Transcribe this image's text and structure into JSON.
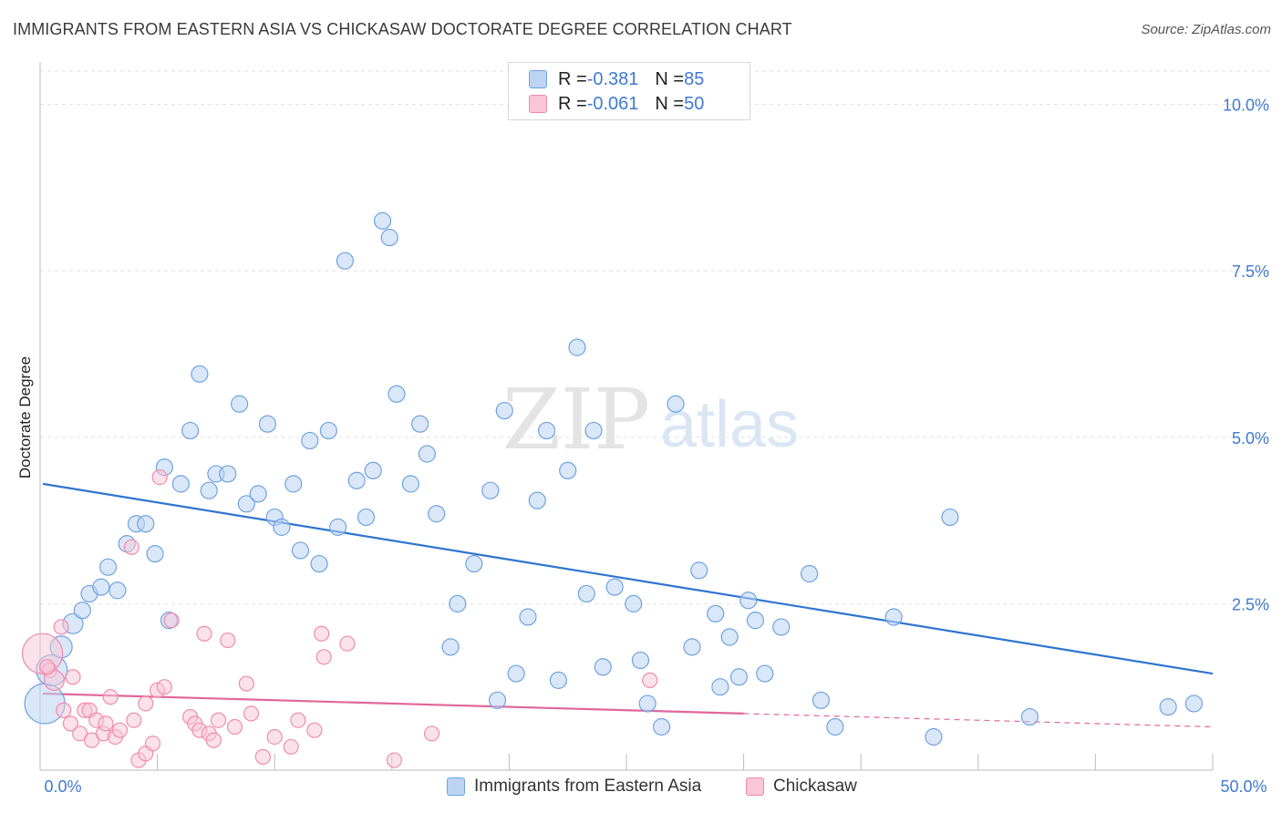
{
  "title": "IMMIGRANTS FROM EASTERN ASIA VS CHICKASAW DOCTORATE DEGREE CORRELATION CHART",
  "source": "Source: ZipAtlas.com",
  "watermark": {
    "zip": "ZIP",
    "atlas": "atlas"
  },
  "legend": {
    "rows": [
      {
        "r_label": "R = ",
        "r_value": "-0.381",
        "n_label": "N = ",
        "n_value": "85"
      },
      {
        "r_label": "R = ",
        "r_value": "-0.061",
        "n_label": "N = ",
        "n_value": "50"
      }
    ]
  },
  "chart_data": {
    "type": "scatter",
    "title": "IMMIGRANTS FROM EASTERN ASIA VS CHICKASAW DOCTORATE DEGREE CORRELATION CHART",
    "xlabel": "",
    "ylabel": "Doctorate Degree",
    "xlim": [
      0,
      50
    ],
    "ylim": [
      0,
      10.5
    ],
    "x_tick_labels": [
      "0.0%",
      "50.0%"
    ],
    "y_ticks": [
      2.5,
      5.0,
      7.5,
      10.0
    ],
    "y_tick_labels": [
      "2.5%",
      "5.0%",
      "7.5%",
      "10.0%"
    ],
    "grid": true,
    "colors": {
      "series1": "#6fa3e0",
      "series1_fill": "#bcd4f2",
      "series1_line": "#2f74d0",
      "series2": "#f08cae",
      "series2_fill": "#f8c6d6",
      "series2_line": "#e0679a",
      "tick_label": "#3f7ad1"
    },
    "series": [
      {
        "name": "Immigrants from Eastern Asia",
        "r": -0.381,
        "n": 85,
        "trend": {
          "x0": 0,
          "y0": 4.3,
          "x1": 50,
          "y1": 1.45
        },
        "points": [
          [
            0.2,
            1.0
          ],
          [
            0.5,
            1.5
          ],
          [
            0.9,
            1.85
          ],
          [
            1.4,
            2.2
          ],
          [
            1.8,
            2.4
          ],
          [
            2.1,
            2.65
          ],
          [
            2.6,
            2.75
          ],
          [
            2.9,
            3.05
          ],
          [
            3.3,
            2.7
          ],
          [
            3.7,
            3.4
          ],
          [
            4.1,
            3.7
          ],
          [
            4.5,
            3.7
          ],
          [
            4.9,
            3.25
          ],
          [
            5.3,
            4.55
          ],
          [
            5.5,
            2.25
          ],
          [
            6.0,
            4.3
          ],
          [
            6.4,
            5.1
          ],
          [
            6.8,
            5.95
          ],
          [
            7.2,
            4.2
          ],
          [
            7.5,
            4.45
          ],
          [
            8.0,
            4.45
          ],
          [
            8.5,
            5.5
          ],
          [
            8.8,
            4.0
          ],
          [
            9.3,
            4.15
          ],
          [
            9.7,
            5.2
          ],
          [
            10.0,
            3.8
          ],
          [
            10.3,
            3.65
          ],
          [
            10.8,
            4.3
          ],
          [
            11.1,
            3.3
          ],
          [
            11.5,
            4.95
          ],
          [
            11.9,
            3.1
          ],
          [
            12.3,
            5.1
          ],
          [
            12.7,
            3.65
          ],
          [
            13.0,
            7.65
          ],
          [
            13.5,
            4.35
          ],
          [
            13.9,
            3.8
          ],
          [
            14.2,
            4.5
          ],
          [
            14.6,
            8.25
          ],
          [
            14.9,
            8.0
          ],
          [
            15.2,
            5.65
          ],
          [
            15.8,
            4.3
          ],
          [
            16.2,
            5.2
          ],
          [
            16.5,
            4.75
          ],
          [
            16.9,
            3.85
          ],
          [
            17.5,
            1.85
          ],
          [
            17.8,
            2.5
          ],
          [
            18.5,
            3.1
          ],
          [
            19.2,
            4.2
          ],
          [
            19.5,
            1.05
          ],
          [
            19.8,
            5.4
          ],
          [
            20.3,
            1.45
          ],
          [
            20.8,
            2.3
          ],
          [
            21.2,
            4.05
          ],
          [
            21.6,
            5.1
          ],
          [
            22.1,
            1.35
          ],
          [
            22.5,
            4.5
          ],
          [
            22.9,
            6.35
          ],
          [
            23.3,
            2.65
          ],
          [
            23.6,
            5.1
          ],
          [
            24.0,
            1.55
          ],
          [
            24.5,
            2.75
          ],
          [
            25.3,
            2.5
          ],
          [
            25.6,
            1.65
          ],
          [
            25.9,
            1.0
          ],
          [
            26.5,
            0.65
          ],
          [
            27.1,
            5.5
          ],
          [
            27.8,
            1.85
          ],
          [
            28.1,
            3.0
          ],
          [
            28.8,
            2.35
          ],
          [
            29.0,
            1.25
          ],
          [
            29.4,
            2.0
          ],
          [
            29.8,
            1.4
          ],
          [
            30.2,
            2.55
          ],
          [
            30.5,
            2.25
          ],
          [
            30.9,
            1.45
          ],
          [
            31.6,
            2.15
          ],
          [
            32.8,
            2.95
          ],
          [
            33.3,
            1.05
          ],
          [
            33.9,
            0.65
          ],
          [
            36.4,
            2.3
          ],
          [
            38.1,
            0.5
          ],
          [
            38.8,
            3.8
          ],
          [
            42.2,
            0.8
          ],
          [
            48.1,
            0.95
          ],
          [
            49.2,
            1.0
          ]
        ]
      },
      {
        "name": "Chickasaw",
        "r": -0.061,
        "n": 50,
        "trend": {
          "x0": 0,
          "y0": 1.15,
          "x1": 30,
          "y1": 0.85,
          "dash_x1": 50,
          "dash_y1": 0.65
        },
        "points": [
          [
            0.1,
            1.75
          ],
          [
            0.4,
            1.5
          ],
          [
            0.6,
            1.35
          ],
          [
            0.9,
            2.15
          ],
          [
            1.0,
            0.9
          ],
          [
            1.3,
            0.7
          ],
          [
            1.4,
            1.4
          ],
          [
            1.7,
            0.55
          ],
          [
            1.9,
            0.9
          ],
          [
            2.1,
            0.9
          ],
          [
            2.2,
            0.45
          ],
          [
            2.4,
            0.75
          ],
          [
            2.7,
            0.55
          ],
          [
            2.8,
            0.7
          ],
          [
            3.0,
            1.1
          ],
          [
            3.2,
            0.5
          ],
          [
            3.4,
            0.6
          ],
          [
            3.9,
            3.35
          ],
          [
            4.0,
            0.75
          ],
          [
            4.2,
            0.15
          ],
          [
            4.5,
            0.25
          ],
          [
            4.5,
            1.0
          ],
          [
            4.8,
            0.4
          ],
          [
            5.0,
            1.2
          ],
          [
            5.3,
            1.25
          ],
          [
            5.6,
            2.25
          ],
          [
            5.1,
            4.4
          ],
          [
            6.4,
            0.8
          ],
          [
            6.6,
            0.7
          ],
          [
            6.8,
            0.6
          ],
          [
            7.0,
            2.05
          ],
          [
            7.2,
            0.55
          ],
          [
            7.4,
            0.45
          ],
          [
            7.6,
            0.75
          ],
          [
            8.0,
            1.95
          ],
          [
            8.3,
            0.65
          ],
          [
            8.8,
            1.3
          ],
          [
            9.0,
            0.85
          ],
          [
            9.5,
            0.2
          ],
          [
            10.0,
            0.5
          ],
          [
            10.7,
            0.35
          ],
          [
            11.0,
            0.75
          ],
          [
            11.7,
            0.6
          ],
          [
            12.0,
            2.05
          ],
          [
            12.1,
            1.7
          ],
          [
            13.1,
            1.9
          ],
          [
            15.1,
            0.15
          ],
          [
            16.7,
            0.55
          ],
          [
            26.0,
            1.35
          ],
          [
            0.3,
            1.55
          ]
        ]
      }
    ]
  },
  "bottom_legend": [
    {
      "label": "Immigrants from Eastern Asia"
    },
    {
      "label": "Chickasaw"
    }
  ]
}
